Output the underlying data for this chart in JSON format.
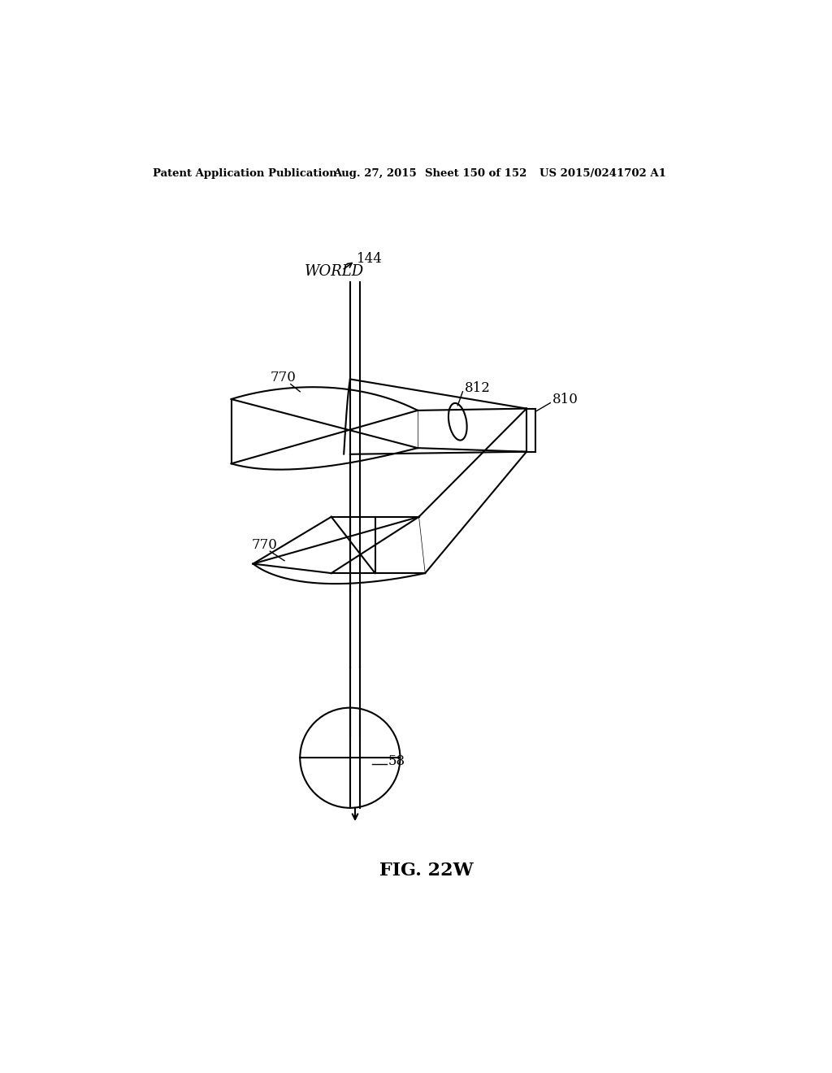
{
  "header_left": "Patent Application Publication",
  "header_date": "Aug. 27, 2015",
  "header_sheet": "Sheet 150 of 152",
  "header_patent": "US 2015/0241702 A1",
  "fig_label": "FIG. 22W",
  "label_world": "WORLD",
  "label_144": "144",
  "label_770a": "770",
  "label_812": "812",
  "label_810": "810",
  "label_770b": "770",
  "label_58": "58",
  "bg_color": "#ffffff",
  "line_color": "#000000"
}
